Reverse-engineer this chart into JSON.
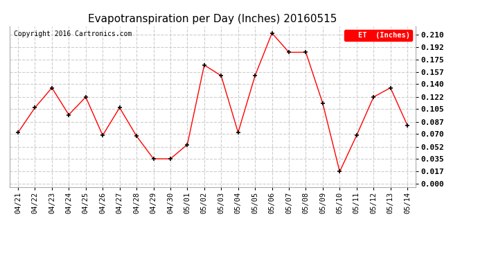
{
  "title": "Evapotranspiration per Day (Inches) 20160515",
  "copyright_text": "Copyright 2016 Cartronics.com",
  "legend_label": "ET  (Inches)",
  "dates": [
    "04/21",
    "04/22",
    "04/23",
    "04/24",
    "04/25",
    "04/26",
    "04/27",
    "04/28",
    "04/29",
    "04/30",
    "05/01",
    "05/02",
    "05/03",
    "05/04",
    "05/05",
    "05/06",
    "05/07",
    "05/08",
    "05/09",
    "05/10",
    "05/11",
    "05/12",
    "05/13",
    "05/14"
  ],
  "values": [
    0.072,
    0.107,
    0.135,
    0.097,
    0.122,
    0.068,
    0.107,
    0.067,
    0.035,
    0.035,
    0.055,
    0.167,
    0.152,
    0.072,
    0.152,
    0.212,
    0.185,
    0.185,
    0.113,
    0.017,
    0.068,
    0.122,
    0.135,
    0.082
  ],
  "yticks": [
    0.0,
    0.017,
    0.035,
    0.052,
    0.07,
    0.087,
    0.105,
    0.122,
    0.14,
    0.157,
    0.175,
    0.192,
    0.21
  ],
  "ylim": [
    -0.005,
    0.222
  ],
  "line_color": "red",
  "marker": "+",
  "marker_color": "black",
  "plot_bg_color": "#ffffff",
  "fig_bg_color": "#ffffff",
  "grid_color": "#cccccc",
  "title_fontsize": 11,
  "copyright_fontsize": 7,
  "tick_fontsize": 7.5,
  "ytick_fontsize": 8,
  "legend_bg": "red",
  "legend_text_color": "white"
}
